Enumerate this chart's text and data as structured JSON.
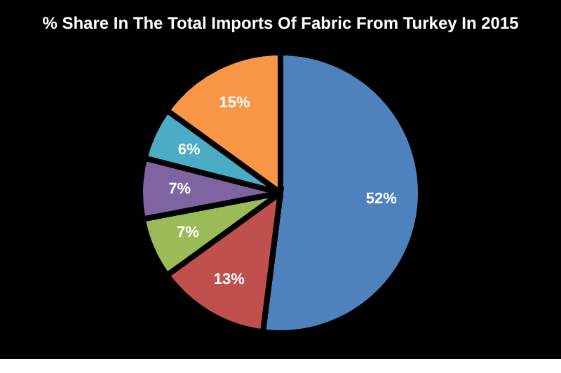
{
  "chart_data": {
    "type": "pie",
    "title": "% Share In The Total Imports Of Fabric From Turkey In 2015",
    "categories": [
      null,
      null,
      null,
      null,
      null,
      null
    ],
    "values": [
      52,
      13,
      7,
      7,
      6,
      15
    ],
    "value_labels": [
      "52%",
      "13%",
      "7%",
      "7%",
      "6%",
      "15%"
    ],
    "colors": [
      "#4f81bd",
      "#c0504d",
      "#9bbb59",
      "#8064a2",
      "#4bacc6",
      "#f79646"
    ]
  }
}
